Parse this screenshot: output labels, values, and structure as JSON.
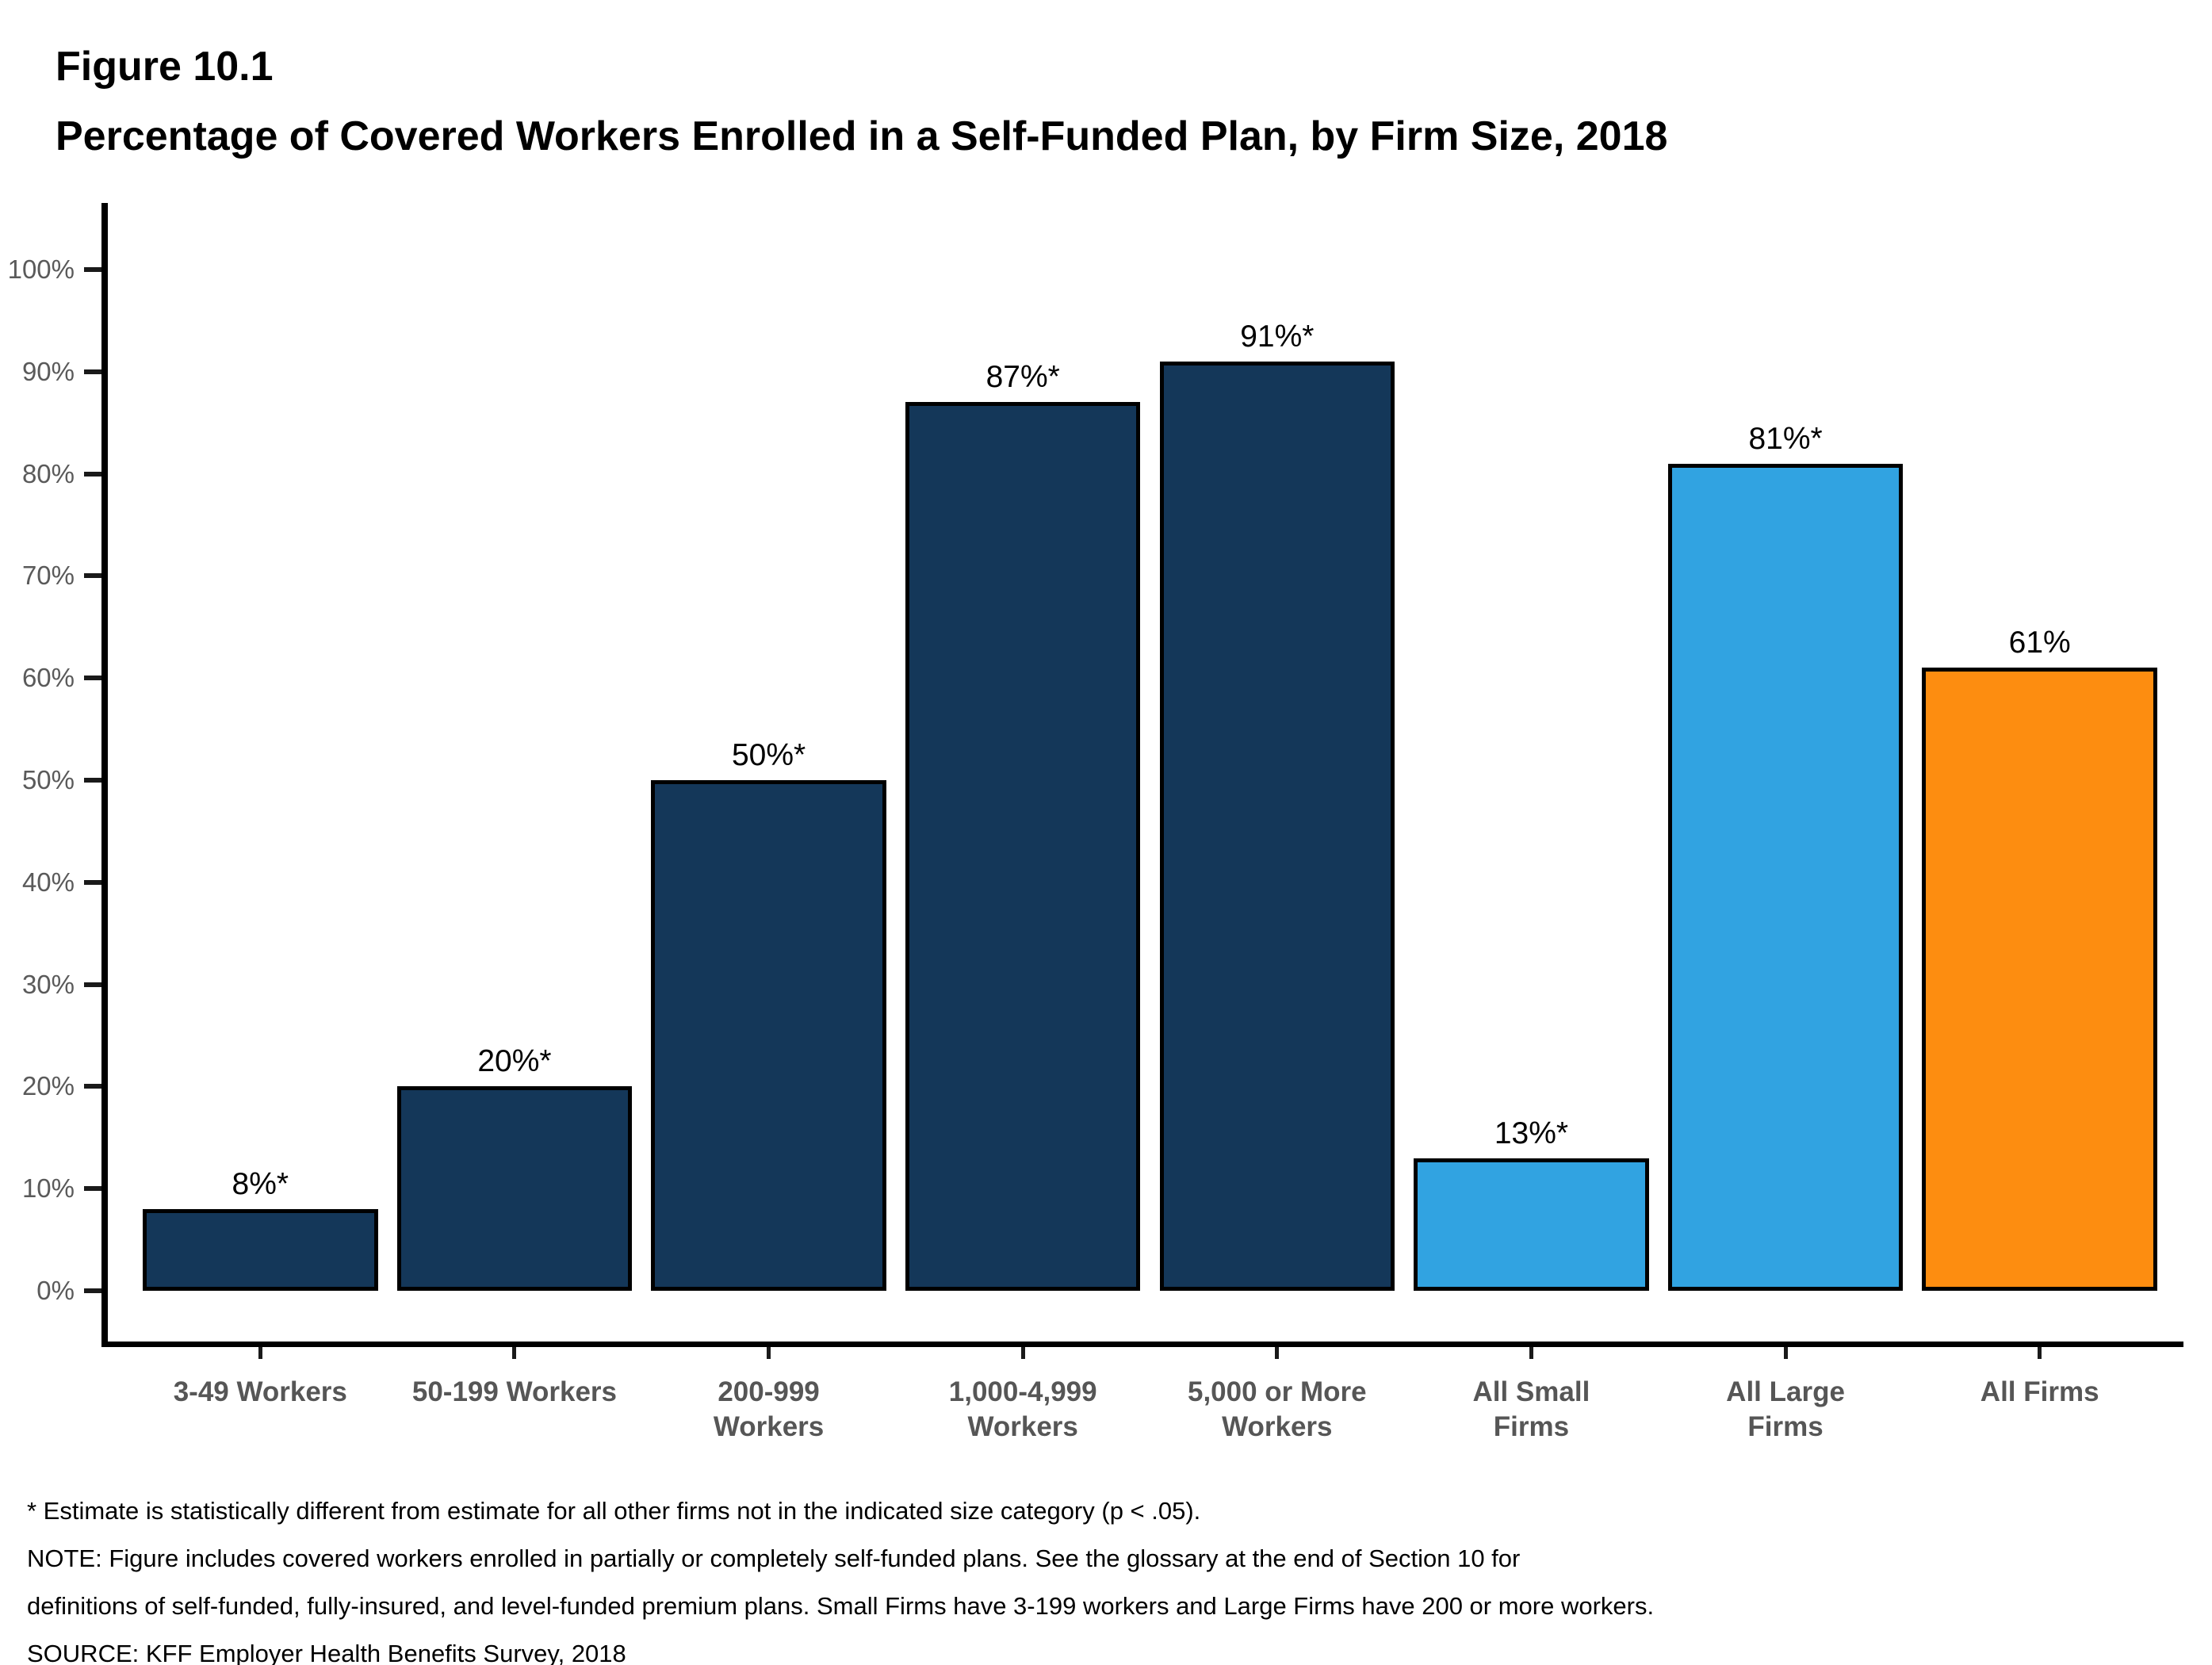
{
  "figure": {
    "label": "Figure 10.1",
    "title": "Percentage of Covered Workers Enrolled in a Self-Funded Plan, by Firm Size, 2018"
  },
  "chart_data": {
    "type": "bar",
    "title": "Percentage of Covered Workers Enrolled in a Self-Funded Plan, by Firm Size, 2018",
    "categories": [
      "3-49 Workers",
      "50-199 Workers",
      "200-999 Workers",
      "1,000-4,999 Workers",
      "5,000 or More Workers",
      "All Small Firms",
      "All Large Firms",
      "All Firms"
    ],
    "category_display": [
      "3-49 Workers",
      "50-199 Workers",
      "200-999\nWorkers",
      "1,000-4,999\nWorkers",
      "5,000 or More\nWorkers",
      "All Small\nFirms",
      "All Large\nFirms",
      "All Firms"
    ],
    "values": [
      8,
      20,
      50,
      87,
      91,
      13,
      81,
      61
    ],
    "value_labels": [
      "8%*",
      "20%*",
      "50%*",
      "87%*",
      "91%*",
      "13%*",
      "81%*",
      "61%"
    ],
    "bar_colors": [
      "#143759",
      "#143759",
      "#143759",
      "#143759",
      "#143759",
      "#31A3E1",
      "#31A3E1",
      "#FD8D10"
    ],
    "xlabel": "",
    "ylabel": "",
    "ylim": [
      0,
      100
    ],
    "ytick_labels": [
      "0%",
      "10%",
      "20%",
      "30%",
      "40%",
      "50%",
      "60%",
      "70%",
      "80%",
      "90%",
      "100%"
    ],
    "grid": false,
    "legend": null
  },
  "colors": {
    "navy": "#143759",
    "light_blue": "#31A3E1",
    "orange": "#FD8D10",
    "axis": "#000000",
    "tick_label": "#5a5a5a",
    "category_label": "#565656",
    "value_label": "#000000"
  },
  "footnotes": {
    "lines": [
      "* Estimate is statistically different from estimate for all other firms not in the indicated size category (p < .05).",
      "NOTE: Figure includes covered workers enrolled in partially or completely self-funded plans. See the glossary at the end of Section 10 for",
      "definitions of self-funded, fully-insured, and level-funded premium plans. Small Firms have 3-199 workers and Large Firms have 200 or more workers.",
      "SOURCE: KFF Employer Health Benefits Survey, 2018"
    ]
  }
}
